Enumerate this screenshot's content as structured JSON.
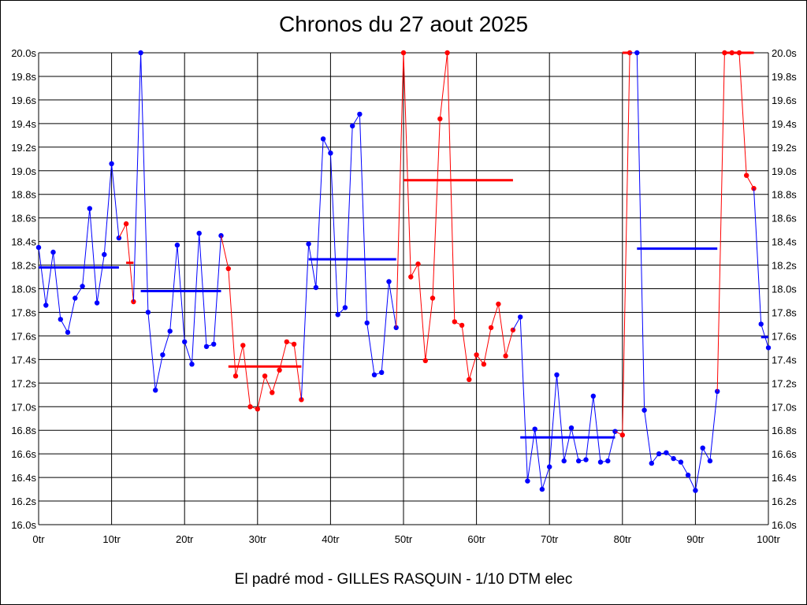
{
  "chart_data": {
    "type": "line",
    "title": "Chronos du 27 aout 2025",
    "footer": "El padré mod - GILLES RASQUIN - 1/10 DTM elec",
    "xlim": [
      0,
      100
    ],
    "ylim": [
      16.0,
      20.0
    ],
    "x_tick_labels": [
      "0tr",
      "10tr",
      "20tr",
      "30tr",
      "40tr",
      "50tr",
      "60tr",
      "70tr",
      "80tr",
      "90tr",
      "100tr"
    ],
    "y_tick_labels": [
      "16.0s",
      "16.2s",
      "16.4s",
      "16.6s",
      "16.8s",
      "17.0s",
      "17.2s",
      "17.4s",
      "17.6s",
      "17.8s",
      "18.0s",
      "18.2s",
      "18.4s",
      "18.6s",
      "18.8s",
      "19.0s",
      "19.2s",
      "19.4s",
      "19.6s",
      "19.8s",
      "20.0s"
    ],
    "grid": true,
    "colors": {
      "blue": "#0000ff",
      "red": "#ff0000",
      "grid": "#000000"
    },
    "segments": [
      {
        "color": "blue",
        "x": [
          0,
          1,
          2,
          3,
          4,
          5,
          6,
          7,
          8,
          9,
          10,
          11
        ],
        "y": [
          18.35,
          17.86,
          18.31,
          17.74,
          17.63,
          17.92,
          18.02,
          18.68,
          17.88,
          18.29,
          19.06,
          18.43
        ],
        "avg": 18.18
      },
      {
        "color": "red",
        "x": [
          12,
          13
        ],
        "y": [
          18.55,
          17.89
        ],
        "avg": 18.22
      },
      {
        "color": "blue",
        "x": [
          14,
          15,
          16,
          17,
          18,
          19,
          20,
          21,
          22,
          23,
          24,
          25
        ],
        "y": [
          20.0,
          17.8,
          17.14,
          17.44,
          17.64,
          18.37,
          17.55,
          17.36,
          18.47,
          17.51,
          17.53,
          18.45
        ],
        "avg": 17.98
      },
      {
        "color": "red",
        "x": [
          26,
          27,
          28,
          29,
          30,
          31,
          32,
          33,
          34,
          35,
          36
        ],
        "y": [
          18.17,
          17.26,
          17.52,
          17.0,
          16.98,
          17.26,
          17.12,
          17.31,
          17.55,
          17.53,
          17.06
        ],
        "avg": 17.34
      },
      {
        "color": "blue",
        "x": [
          37,
          38,
          39,
          40,
          41,
          42,
          43,
          44,
          45,
          46,
          47,
          48,
          49
        ],
        "y": [
          18.38,
          18.01,
          19.27,
          19.15,
          17.78,
          17.84,
          19.38,
          19.48,
          17.71,
          17.27,
          17.29,
          18.06,
          17.67
        ],
        "avg": 18.25
      },
      {
        "color": "red",
        "x": [
          50,
          51,
          52,
          53,
          54,
          55,
          56,
          57,
          58,
          59,
          60,
          61,
          62,
          63,
          64,
          65
        ],
        "y": [
          20.0,
          18.1,
          18.21,
          17.39,
          17.92,
          19.44,
          20.0,
          17.72,
          17.69,
          17.23,
          17.44,
          17.36,
          17.67,
          17.87,
          17.43,
          17.65
        ],
        "avg": 18.92
      },
      {
        "color": "blue",
        "x": [
          66,
          67,
          68,
          69,
          70,
          71,
          72,
          73,
          74,
          75,
          76,
          77,
          78,
          79
        ],
        "y": [
          17.76,
          16.37,
          16.81,
          16.3,
          16.49,
          17.27,
          16.54,
          16.82,
          16.54,
          16.55,
          17.09,
          16.53,
          16.54,
          16.79
        ],
        "avg": 16.74
      },
      {
        "color": "red",
        "x": [
          80,
          81
        ],
        "y": [
          16.76,
          20.0
        ],
        "avg": 20.0
      },
      {
        "color": "blue",
        "x": [
          82,
          83,
          84,
          85,
          86,
          87,
          88,
          89,
          90,
          91,
          92,
          93
        ],
        "y": [
          20.0,
          16.97,
          16.52,
          16.6,
          16.61,
          16.56,
          16.53,
          16.42,
          16.29,
          16.65,
          16.54,
          17.13
        ],
        "avg": 18.34
      },
      {
        "color": "red",
        "x": [
          94,
          95,
          96,
          97,
          98
        ],
        "y": [
          20.0,
          20.0,
          20.0,
          18.96,
          18.85
        ],
        "avg": 20.0
      },
      {
        "color": "blue",
        "x": [
          99,
          100
        ],
        "y": [
          17.7,
          17.5
        ],
        "avg": 17.59
      }
    ]
  }
}
